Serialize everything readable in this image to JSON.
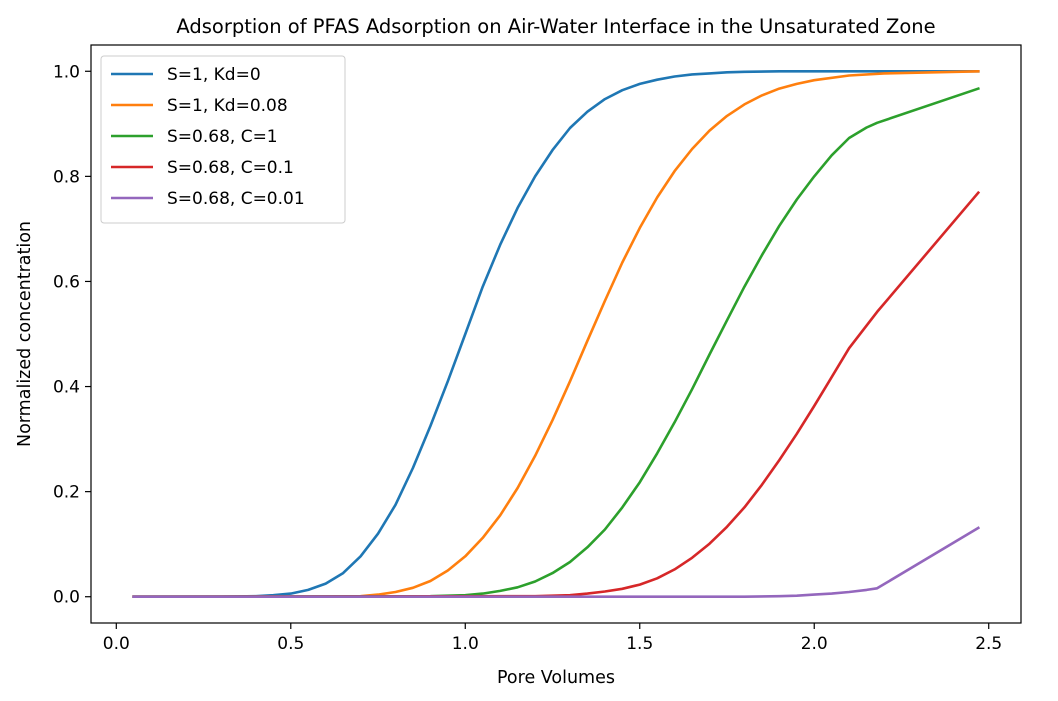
{
  "chart_data": {
    "type": "line",
    "title": "Adsorption of PFAS Adsorption on Air-Water Interface in the Unsaturated Zone",
    "xlabel": "Pore Volumes",
    "ylabel": "Normalized concentration",
    "xlim": [
      -0.0725,
      2.5925
    ],
    "ylim": [
      -0.05,
      1.05
    ],
    "xticks": [
      0.0,
      0.5,
      1.0,
      1.5,
      2.0,
      2.5
    ],
    "xtick_labels": [
      "0.0",
      "0.5",
      "1.0",
      "1.5",
      "2.0",
      "2.5"
    ],
    "yticks": [
      0.0,
      0.2,
      0.4,
      0.6,
      0.8,
      1.0
    ],
    "ytick_labels": [
      "0.0",
      "0.2",
      "0.4",
      "0.6",
      "0.8",
      "1.0"
    ],
    "grid": false,
    "legend_position": "upper-left",
    "series": [
      {
        "name": "S=1, Kd=0",
        "color": "#1f77b4",
        "x": [
          0.05,
          0.3,
          0.4,
          0.45,
          0.5,
          0.55,
          0.6,
          0.65,
          0.7,
          0.75,
          0.8,
          0.85,
          0.9,
          0.95,
          1.0,
          1.05,
          1.1,
          1.15,
          1.2,
          1.25,
          1.3,
          1.35,
          1.4,
          1.45,
          1.5,
          1.55,
          1.6,
          1.65,
          1.7,
          1.75,
          1.8,
          1.9,
          2.0,
          2.2,
          2.47
        ],
        "y": [
          0.0,
          0.0,
          0.001,
          0.003,
          0.006,
          0.013,
          0.025,
          0.045,
          0.077,
          0.12,
          0.175,
          0.245,
          0.325,
          0.41,
          0.5,
          0.59,
          0.67,
          0.74,
          0.8,
          0.85,
          0.892,
          0.923,
          0.947,
          0.964,
          0.976,
          0.984,
          0.99,
          0.994,
          0.996,
          0.998,
          0.999,
          1.0,
          1.0,
          1.0,
          1.0
        ]
      },
      {
        "name": "S=1, Kd=0.08",
        "color": "#ff7f0e",
        "x": [
          0.05,
          0.6,
          0.7,
          0.75,
          0.8,
          0.85,
          0.9,
          0.95,
          1.0,
          1.05,
          1.1,
          1.15,
          1.2,
          1.25,
          1.3,
          1.35,
          1.4,
          1.45,
          1.5,
          1.55,
          1.6,
          1.65,
          1.7,
          1.75,
          1.8,
          1.85,
          1.9,
          1.95,
          2.0,
          2.1,
          2.2,
          2.47
        ],
        "y": [
          0.0,
          0.0,
          0.001,
          0.004,
          0.009,
          0.017,
          0.03,
          0.05,
          0.077,
          0.112,
          0.155,
          0.207,
          0.268,
          0.336,
          0.41,
          0.487,
          0.563,
          0.636,
          0.702,
          0.76,
          0.81,
          0.852,
          0.887,
          0.915,
          0.937,
          0.954,
          0.967,
          0.976,
          0.983,
          0.992,
          0.996,
          1.0
        ]
      },
      {
        "name": "S=0.68, C=1",
        "color": "#2ca02c",
        "x": [
          0.05,
          0.9,
          1.0,
          1.05,
          1.1,
          1.15,
          1.2,
          1.25,
          1.3,
          1.35,
          1.4,
          1.45,
          1.5,
          1.55,
          1.6,
          1.65,
          1.7,
          1.75,
          1.8,
          1.85,
          1.9,
          1.95,
          2.0,
          2.05,
          2.1,
          2.15,
          2.18,
          2.47
        ],
        "y": [
          0.0,
          0.001,
          0.003,
          0.006,
          0.011,
          0.018,
          0.029,
          0.045,
          0.066,
          0.094,
          0.128,
          0.17,
          0.218,
          0.273,
          0.332,
          0.395,
          0.461,
          0.526,
          0.59,
          0.65,
          0.706,
          0.756,
          0.8,
          0.84,
          0.873,
          0.893,
          0.902,
          0.967
        ]
      },
      {
        "name": "S=0.68, C=0.1",
        "color": "#d62728",
        "x": [
          0.05,
          1.2,
          1.3,
          1.35,
          1.4,
          1.45,
          1.5,
          1.55,
          1.6,
          1.65,
          1.7,
          1.75,
          1.8,
          1.85,
          1.9,
          1.95,
          2.0,
          2.05,
          2.1,
          2.18,
          2.47
        ],
        "y": [
          0.0,
          0.001,
          0.003,
          0.006,
          0.01,
          0.015,
          0.023,
          0.035,
          0.052,
          0.074,
          0.101,
          0.133,
          0.17,
          0.213,
          0.26,
          0.31,
          0.363,
          0.418,
          0.473,
          0.542,
          0.769
        ]
      },
      {
        "name": "S=0.68, C=0.01",
        "color": "#9467bd",
        "x": [
          0.05,
          1.8,
          1.9,
          1.95,
          2.0,
          2.05,
          2.1,
          2.15,
          2.18,
          2.47
        ],
        "y": [
          0.0,
          0.0,
          0.001,
          0.002,
          0.004,
          0.006,
          0.009,
          0.013,
          0.016,
          0.131
        ]
      }
    ]
  }
}
